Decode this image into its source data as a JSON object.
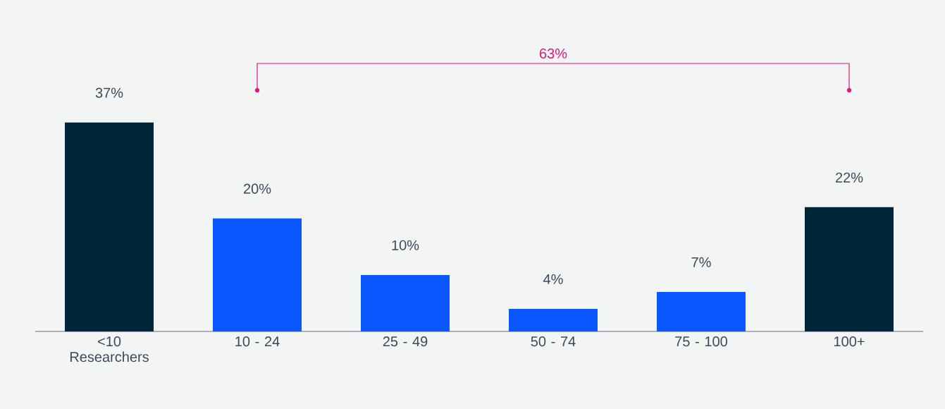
{
  "chart_data": {
    "type": "bar",
    "categories": [
      "<10 Researchers",
      "10 - 24",
      "25 - 49",
      "50 - 74",
      "75 - 100",
      "100+"
    ],
    "values": [
      37,
      20,
      10,
      4,
      7,
      22
    ],
    "value_labels": [
      "37%",
      "20%",
      "10%",
      "4%",
      "7%",
      "22%"
    ],
    "colors": [
      "#002639",
      "#0a57ff",
      "#0a57ff",
      "#0a57ff",
      "#0a57ff",
      "#002639"
    ],
    "annotations": [
      "63%"
    ]
  }
}
